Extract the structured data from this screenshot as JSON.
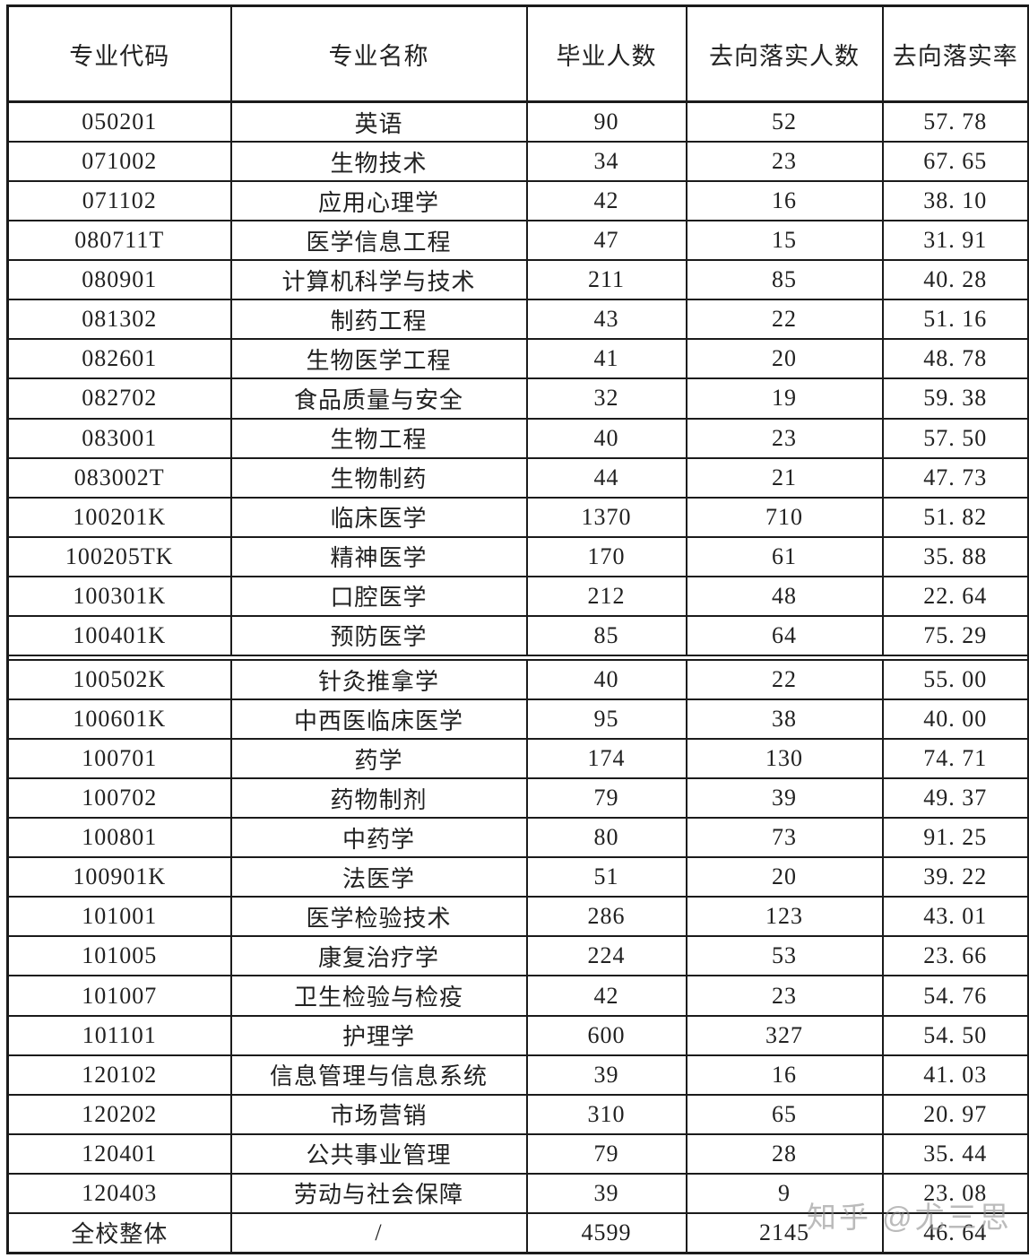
{
  "table": {
    "columns": [
      "专业代码",
      "专业名称",
      "毕业人数",
      "去向落实人数",
      "去向落实率"
    ],
    "rows": [
      [
        "050201",
        "英语",
        "90",
        "52",
        "57. 78"
      ],
      [
        "071002",
        "生物技术",
        "34",
        "23",
        "67. 65"
      ],
      [
        "071102",
        "应用心理学",
        "42",
        "16",
        "38. 10"
      ],
      [
        "080711T",
        "医学信息工程",
        "47",
        "15",
        "31. 91"
      ],
      [
        "080901",
        "计算机科学与技术",
        "211",
        "85",
        "40. 28"
      ],
      [
        "081302",
        "制药工程",
        "43",
        "22",
        "51. 16"
      ],
      [
        "082601",
        "生物医学工程",
        "41",
        "20",
        "48. 78"
      ],
      [
        "082702",
        "食品质量与安全",
        "32",
        "19",
        "59. 38"
      ],
      [
        "083001",
        "生物工程",
        "40",
        "23",
        "57. 50"
      ],
      [
        "083002T",
        "生物制药",
        "44",
        "21",
        "47. 73"
      ],
      [
        "100201K",
        "临床医学",
        "1370",
        "710",
        "51. 82"
      ],
      [
        "100205TK",
        "精神医学",
        "170",
        "61",
        "35. 88"
      ],
      [
        "100301K",
        "口腔医学",
        "212",
        "48",
        "22. 64"
      ],
      [
        "100401K",
        "预防医学",
        "85",
        "64",
        "75. 29"
      ],
      [
        "100502K",
        "针灸推拿学",
        "40",
        "22",
        "55. 00"
      ],
      [
        "100601K",
        "中西医临床医学",
        "95",
        "38",
        "40. 00"
      ],
      [
        "100701",
        "药学",
        "174",
        "130",
        "74. 71"
      ],
      [
        "100702",
        "药物制剂",
        "79",
        "39",
        "49. 37"
      ],
      [
        "100801",
        "中药学",
        "80",
        "73",
        "91. 25"
      ],
      [
        "100901K",
        "法医学",
        "51",
        "20",
        "39. 22"
      ],
      [
        "101001",
        "医学检验技术",
        "286",
        "123",
        "43. 01"
      ],
      [
        "101005",
        "康复治疗学",
        "224",
        "53",
        "23. 66"
      ],
      [
        "101007",
        "卫生检验与检疫",
        "42",
        "23",
        "54. 76"
      ],
      [
        "101101",
        "护理学",
        "600",
        "327",
        "54. 50"
      ],
      [
        "120102",
        "信息管理与信息系统",
        "39",
        "16",
        "41. 03"
      ],
      [
        "120202",
        "市场营销",
        "310",
        "65",
        "20. 97"
      ],
      [
        "120401",
        "公共事业管理",
        "79",
        "28",
        "35. 44"
      ],
      [
        "120403",
        "劳动与社会保障",
        "39",
        "9",
        "23. 08"
      ],
      [
        "全校整体",
        "/",
        "4599",
        "2145",
        "46. 64"
      ]
    ],
    "section_break_after_row_index": 13
  },
  "chart_data": {
    "type": "table",
    "columns": [
      "专业代码",
      "专业名称",
      "毕业人数",
      "去向落实人数",
      "去向落实率"
    ],
    "rows": [
      {
        "code": "050201",
        "name": "英语",
        "graduates": 90,
        "placed": 52,
        "rate": 57.78
      },
      {
        "code": "071002",
        "name": "生物技术",
        "graduates": 34,
        "placed": 23,
        "rate": 67.65
      },
      {
        "code": "071102",
        "name": "应用心理学",
        "graduates": 42,
        "placed": 16,
        "rate": 38.1
      },
      {
        "code": "080711T",
        "name": "医学信息工程",
        "graduates": 47,
        "placed": 15,
        "rate": 31.91
      },
      {
        "code": "080901",
        "name": "计算机科学与技术",
        "graduates": 211,
        "placed": 85,
        "rate": 40.28
      },
      {
        "code": "081302",
        "name": "制药工程",
        "graduates": 43,
        "placed": 22,
        "rate": 51.16
      },
      {
        "code": "082601",
        "name": "生物医学工程",
        "graduates": 41,
        "placed": 20,
        "rate": 48.78
      },
      {
        "code": "082702",
        "name": "食品质量与安全",
        "graduates": 32,
        "placed": 19,
        "rate": 59.38
      },
      {
        "code": "083001",
        "name": "生物工程",
        "graduates": 40,
        "placed": 23,
        "rate": 57.5
      },
      {
        "code": "083002T",
        "name": "生物制药",
        "graduates": 44,
        "placed": 21,
        "rate": 47.73
      },
      {
        "code": "100201K",
        "name": "临床医学",
        "graduates": 1370,
        "placed": 710,
        "rate": 51.82
      },
      {
        "code": "100205TK",
        "name": "精神医学",
        "graduates": 170,
        "placed": 61,
        "rate": 35.88
      },
      {
        "code": "100301K",
        "name": "口腔医学",
        "graduates": 212,
        "placed": 48,
        "rate": 22.64
      },
      {
        "code": "100401K",
        "name": "预防医学",
        "graduates": 85,
        "placed": 64,
        "rate": 75.29
      },
      {
        "code": "100502K",
        "name": "针灸推拿学",
        "graduates": 40,
        "placed": 22,
        "rate": 55.0
      },
      {
        "code": "100601K",
        "name": "中西医临床医学",
        "graduates": 95,
        "placed": 38,
        "rate": 40.0
      },
      {
        "code": "100701",
        "name": "药学",
        "graduates": 174,
        "placed": 130,
        "rate": 74.71
      },
      {
        "code": "100702",
        "name": "药物制剂",
        "graduates": 79,
        "placed": 39,
        "rate": 49.37
      },
      {
        "code": "100801",
        "name": "中药学",
        "graduates": 80,
        "placed": 73,
        "rate": 91.25
      },
      {
        "code": "100901K",
        "name": "法医学",
        "graduates": 51,
        "placed": 20,
        "rate": 39.22
      },
      {
        "code": "101001",
        "name": "医学检验技术",
        "graduates": 286,
        "placed": 123,
        "rate": 43.01
      },
      {
        "code": "101005",
        "name": "康复治疗学",
        "graduates": 224,
        "placed": 53,
        "rate": 23.66
      },
      {
        "code": "101007",
        "name": "卫生检验与检疫",
        "graduates": 42,
        "placed": 23,
        "rate": 54.76
      },
      {
        "code": "101101",
        "name": "护理学",
        "graduates": 600,
        "placed": 327,
        "rate": 54.5
      },
      {
        "code": "120102",
        "name": "信息管理与信息系统",
        "graduates": 39,
        "placed": 16,
        "rate": 41.03
      },
      {
        "code": "120202",
        "name": "市场营销",
        "graduates": 310,
        "placed": 65,
        "rate": 20.97
      },
      {
        "code": "120401",
        "name": "公共事业管理",
        "graduates": 79,
        "placed": 28,
        "rate": 35.44
      },
      {
        "code": "120403",
        "name": "劳动与社会保障",
        "graduates": 39,
        "placed": 9,
        "rate": 23.08
      },
      {
        "code": "全校整体",
        "name": "/",
        "graduates": 4599,
        "placed": 2145,
        "rate": 46.64
      }
    ]
  },
  "watermark": {
    "text": "知乎 @尤三思",
    "color": "#8f8f8f"
  },
  "colors": {
    "border": "#1b1b1b",
    "text": "#212121",
    "background": "#ffffff"
  }
}
